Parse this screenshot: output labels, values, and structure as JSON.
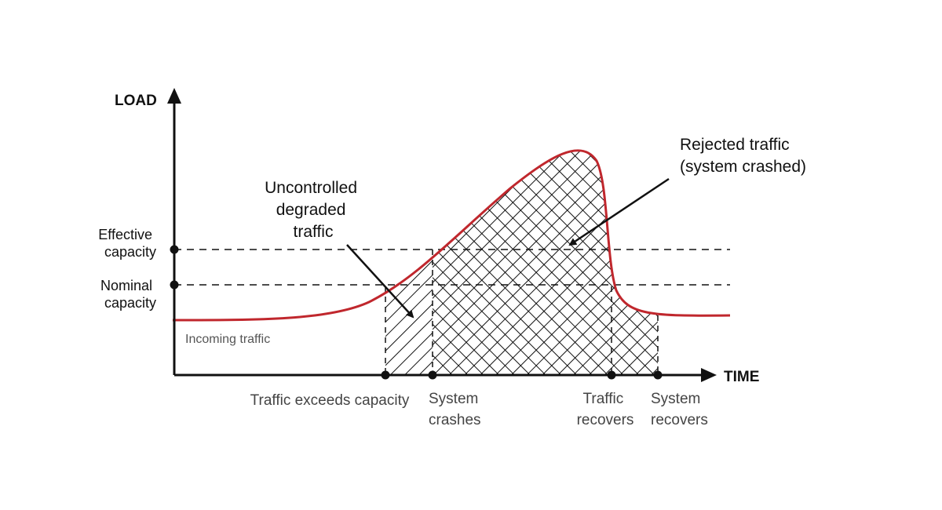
{
  "axes": {
    "y_label": "LOAD",
    "x_label": "TIME"
  },
  "levels": {
    "effective": [
      "Effective",
      "capacity"
    ],
    "nominal": [
      "Nominal",
      "capacity"
    ]
  },
  "curve_label": "Incoming traffic",
  "annotations": {
    "degraded": [
      "Uncontrolled",
      "degraded",
      "traffic"
    ],
    "rejected": [
      "Rejected traffic",
      "(system crashed)"
    ]
  },
  "events": {
    "exceeds": [
      "Traffic exceeds capacity"
    ],
    "crashes": [
      "System",
      "crashes"
    ],
    "traffic_recovers": [
      "Traffic",
      "recovers"
    ],
    "system_recovers": [
      "System",
      "recovers"
    ]
  },
  "colors": {
    "curve": "#c0272d",
    "ink": "#111111"
  }
}
